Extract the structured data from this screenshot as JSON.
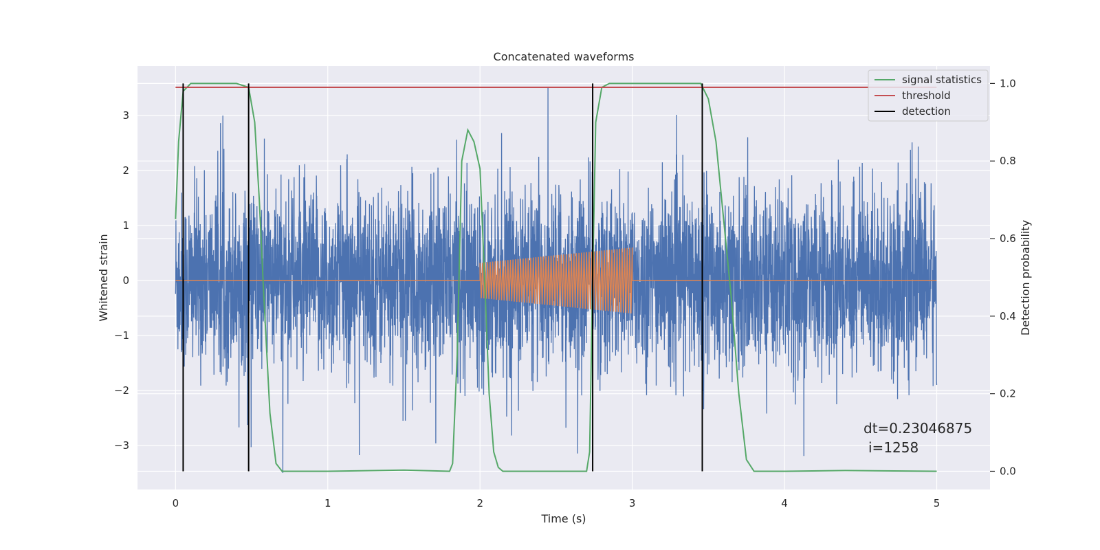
{
  "chart_data": {
    "type": "line",
    "title": "Concatenated waveforms",
    "xlabel": "Time (s)",
    "ylabel": "Whitened strain",
    "y2label": "Detection probability",
    "xlim": [
      -0.25,
      5.35
    ],
    "ylim": [
      -3.8,
      3.9
    ],
    "y2lim": [
      -0.047,
      1.045
    ],
    "x_ticks": [
      0,
      1,
      2,
      3,
      4,
      5
    ],
    "x_tick_labels": [
      "0",
      "1",
      "2",
      "3",
      "4",
      "5"
    ],
    "y_ticks": [
      -3,
      -2,
      -1,
      0,
      1,
      2,
      3
    ],
    "y_tick_labels": [
      "−3",
      "−2",
      "−1",
      "0",
      "1",
      "2",
      "3"
    ],
    "y2_ticks": [
      0.0,
      0.2,
      0.4,
      0.6,
      0.8,
      1.0
    ],
    "y2_tick_labels": [
      "0.0",
      "0.2",
      "0.4",
      "0.6",
      "0.8",
      "1.0"
    ],
    "grid": true,
    "legend_position": "top-right",
    "legend": [
      "signal statistics",
      "threshold",
      "detection"
    ],
    "colors": {
      "strain": "#4c72b0",
      "waveform": "#dd8452",
      "signal_statistics": "#55a868",
      "threshold": "#c44e52",
      "detection": "#000000",
      "background": "#eaeaf2",
      "grid": "#ffffff"
    },
    "series": [
      {
        "name": "signal statistics",
        "axis": "right",
        "x": [
          0.0,
          0.02,
          0.05,
          0.1,
          0.2,
          0.4,
          0.48,
          0.52,
          0.55,
          0.58,
          0.62,
          0.66,
          0.7,
          0.8,
          1.0,
          1.5,
          1.8,
          1.82,
          1.85,
          1.88,
          1.92,
          1.96,
          2.0,
          2.03,
          2.06,
          2.09,
          2.12,
          2.15,
          2.2,
          2.4,
          2.7,
          2.72,
          2.74,
          2.76,
          2.8,
          2.85,
          2.9,
          3.0,
          3.3,
          3.45,
          3.5,
          3.55,
          3.6,
          3.65,
          3.7,
          3.75,
          3.8,
          4.0,
          4.4,
          5.0
        ],
        "y": [
          0.65,
          0.85,
          0.98,
          1.0,
          1.0,
          1.0,
          0.99,
          0.9,
          0.7,
          0.45,
          0.15,
          0.02,
          0.0,
          0.0,
          0.0,
          0.003,
          0.0,
          0.02,
          0.3,
          0.8,
          0.88,
          0.85,
          0.78,
          0.5,
          0.2,
          0.05,
          0.01,
          0.0,
          0.0,
          0.0,
          0.0,
          0.05,
          0.5,
          0.9,
          0.99,
          1.0,
          1.0,
          1.0,
          1.0,
          1.0,
          0.96,
          0.85,
          0.65,
          0.45,
          0.2,
          0.03,
          0.0,
          0.0,
          0.002,
          0.0
        ]
      },
      {
        "name": "threshold",
        "axis": "right",
        "x": [
          0.0,
          5.0
        ],
        "y": [
          0.99,
          0.99
        ]
      },
      {
        "name": "detection",
        "axis": "right",
        "type": "vline",
        "x": [
          0.05,
          0.48,
          2.74,
          3.46
        ]
      }
    ],
    "strain_noise": {
      "axis": "left",
      "x_range": [
        0.0,
        5.0
      ],
      "std": 0.75,
      "spike_max": 3.5,
      "spike_min": -3.5
    },
    "injected_waveform": {
      "axis": "left",
      "x_range": [
        2.0,
        3.0
      ],
      "amplitude_start": 0.32,
      "amplitude_end": 0.6,
      "cycles": 60
    },
    "annotations": [
      "dt=0.23046875",
      "i=1258"
    ]
  }
}
